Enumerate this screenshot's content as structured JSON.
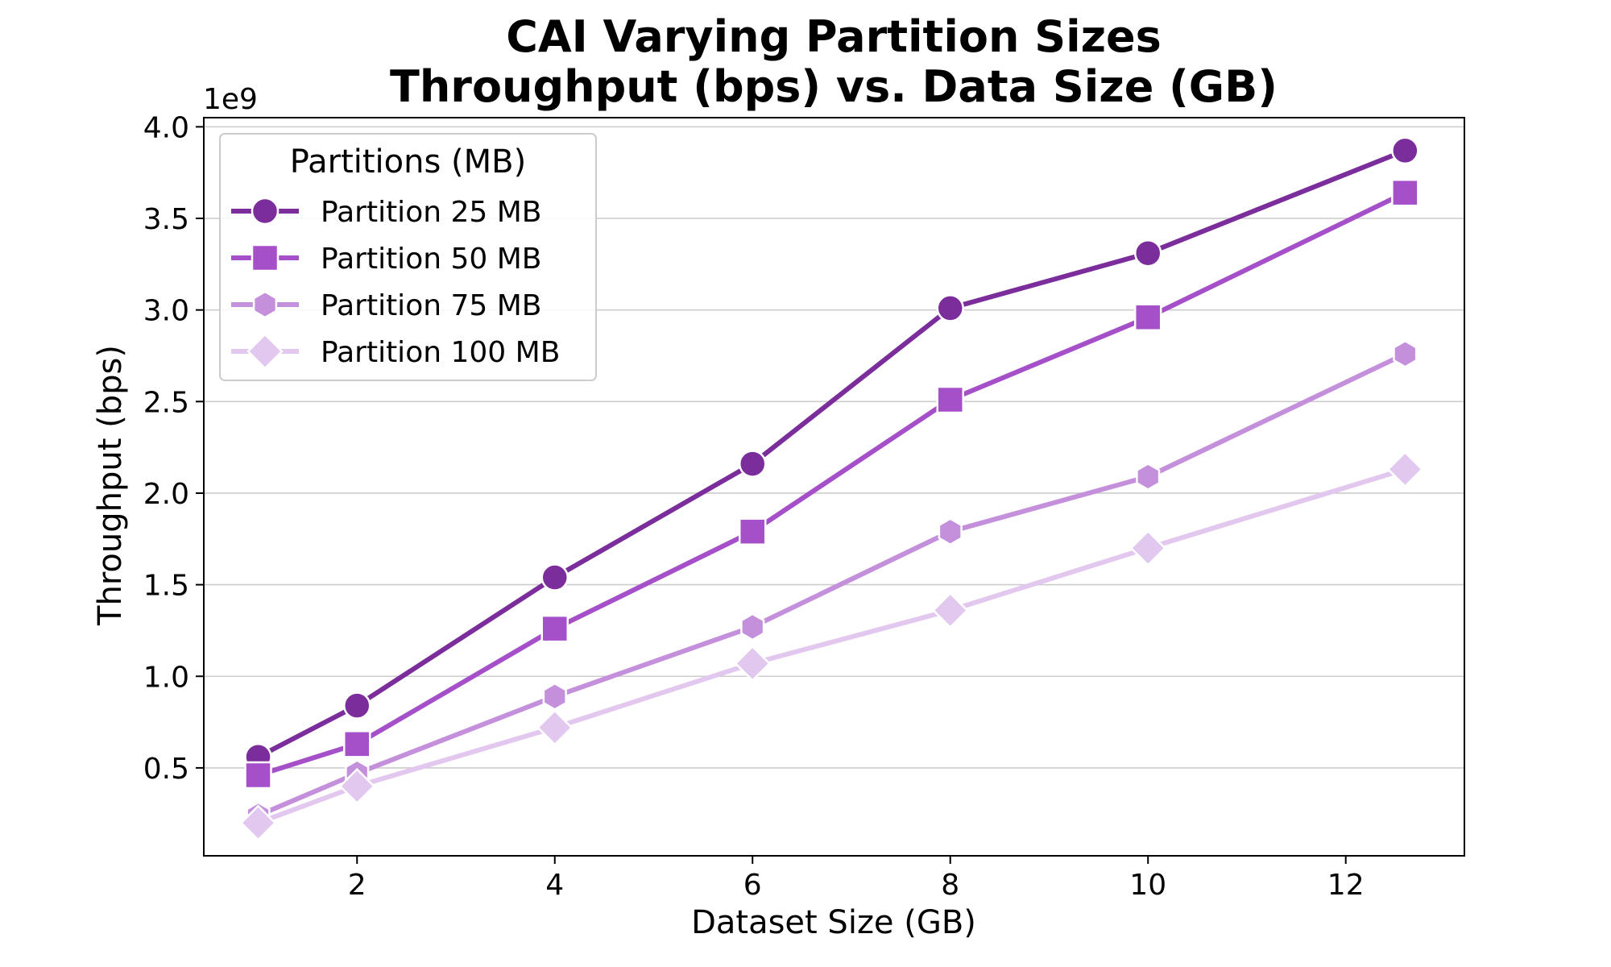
{
  "chart_data": {
    "type": "line",
    "title_lines": [
      "CAI Varying Partition Sizes",
      "Throughput (bps) vs. Data Size (GB)"
    ],
    "xlabel": "Dataset Size (GB)",
    "ylabel": "Throughput (bps)",
    "y_offset_label": "1e9",
    "y_scale": 1000000000,
    "x": [
      1,
      2,
      4,
      6,
      8,
      10,
      12.6
    ],
    "xlim": [
      0.45,
      13.2
    ],
    "ylim": [
      0.02,
      4.05
    ],
    "x_ticks": [
      2,
      4,
      6,
      8,
      10,
      12
    ],
    "y_ticks": [
      0.5,
      1.0,
      1.5,
      2.0,
      2.5,
      3.0,
      3.5,
      4.0
    ],
    "grid": "horizontal",
    "legend": {
      "title": "Partitions (MB)",
      "placement": "top-left"
    },
    "series": [
      {
        "name": "Partition 25 MB",
        "marker": "circle",
        "color": "#7b2d9b",
        "values": [
          0.56,
          0.84,
          1.54,
          2.16,
          3.01,
          3.31,
          3.87
        ]
      },
      {
        "name": "Partition 50 MB",
        "marker": "square",
        "color": "#a550c9",
        "values": [
          0.46,
          0.63,
          1.26,
          1.79,
          2.51,
          2.96,
          3.64
        ]
      },
      {
        "name": "Partition 75 MB",
        "marker": "hexagon",
        "color": "#c48fdb",
        "values": [
          0.24,
          0.47,
          0.89,
          1.27,
          1.79,
          2.09,
          2.76
        ]
      },
      {
        "name": "Partition 100 MB",
        "marker": "diamond",
        "color": "#e2c7ef",
        "values": [
          0.2,
          0.4,
          0.72,
          1.07,
          1.36,
          1.7,
          2.13
        ]
      }
    ]
  }
}
